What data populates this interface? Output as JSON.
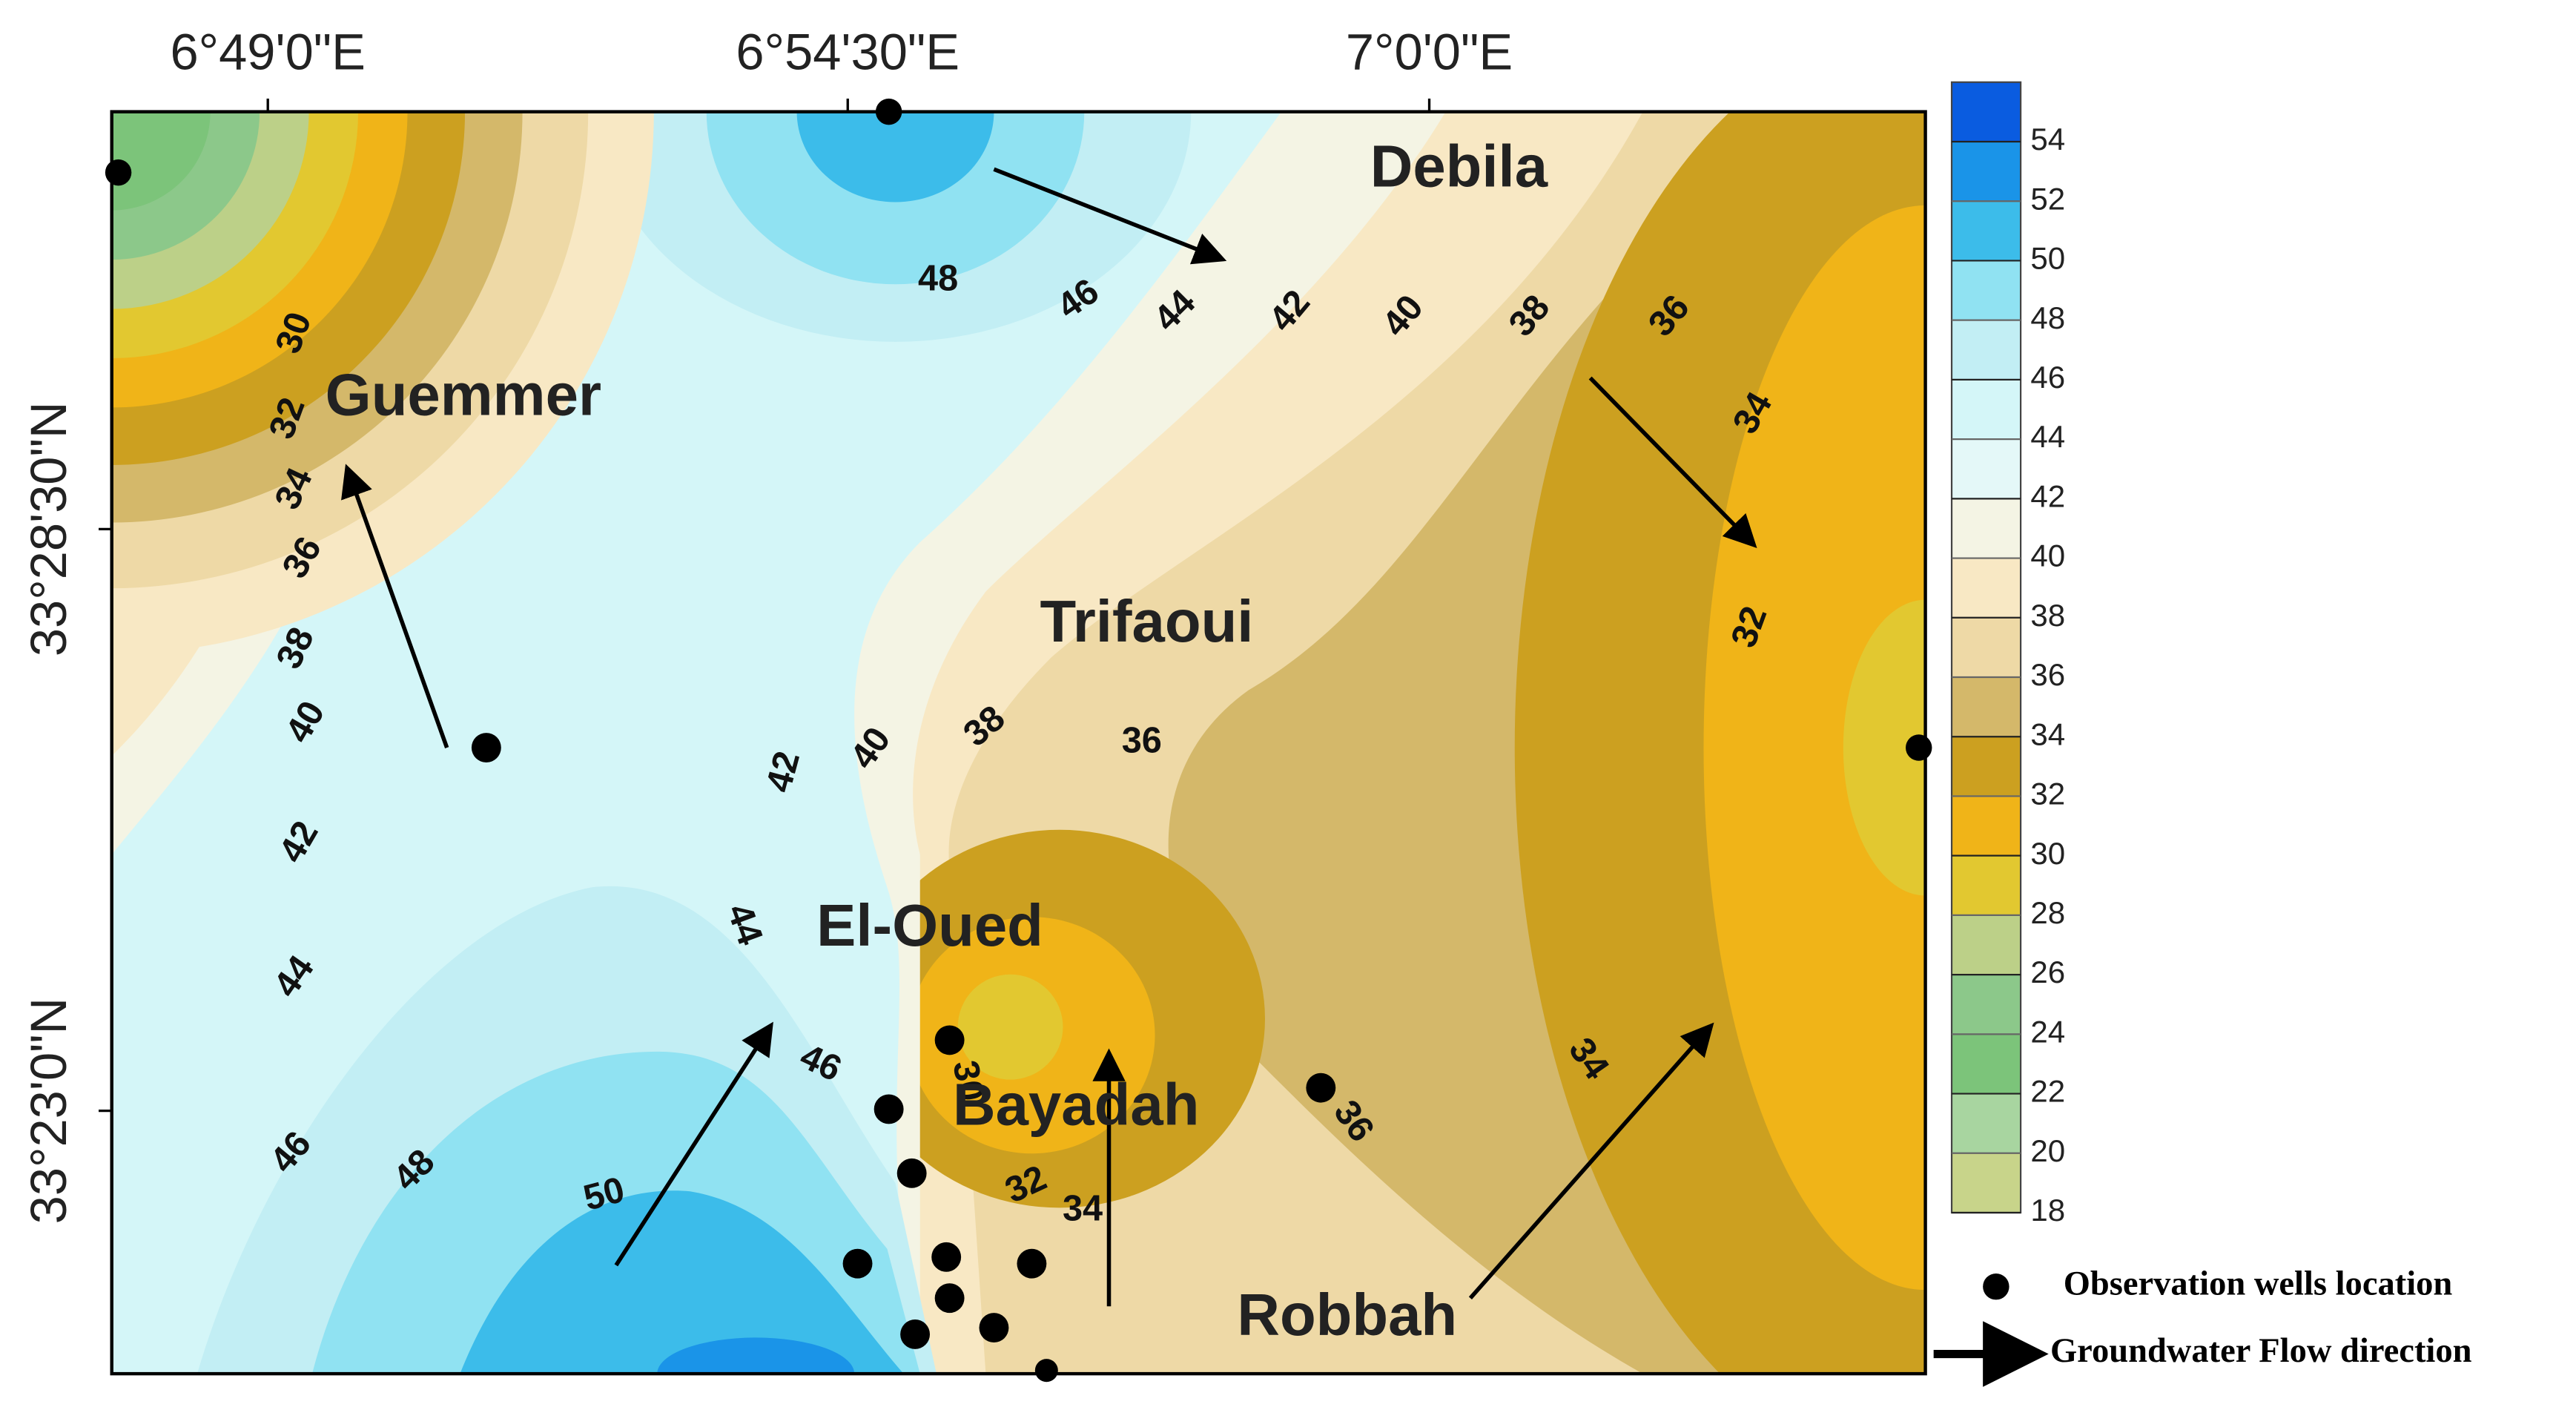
{
  "axes": {
    "longitude_labels": [
      "6°49'0\"E",
      "6°54'30\"E",
      "7°0'0\"E"
    ],
    "latitude_labels": [
      "33°28'30\"N",
      "33°23'0\"N"
    ]
  },
  "places": [
    "Debila",
    "Guemmer",
    "Trifaoui",
    "El-Oued",
    "Bayadah",
    "Robbah"
  ],
  "contour_labels": [
    "48",
    "46",
    "44",
    "42",
    "40",
    "38",
    "36",
    "34",
    "32",
    "30",
    "32",
    "34",
    "36",
    "38",
    "40",
    "42",
    "44",
    "46",
    "48",
    "50",
    "42",
    "40",
    "38",
    "36",
    "44",
    "46",
    "30",
    "32",
    "34",
    "36",
    "34"
  ],
  "colorbar": {
    "range": [
      18,
      56
    ],
    "ticks": [
      18,
      20,
      22,
      24,
      26,
      28,
      30,
      32,
      34,
      36,
      38,
      40,
      42,
      44,
      46,
      48,
      50,
      52,
      54
    ],
    "colors": [
      "#c8d48a",
      "#a8d5a0",
      "#7cc47a",
      "#8cc88a",
      "#bcd088",
      "#e2c830",
      "#f0b418",
      "#cca020",
      "#d4b86a",
      "#eed9a6",
      "#f8e8c4",
      "#f4f4e4",
      "#e4f8f8",
      "#d4f6f8",
      "#c2eef4",
      "#90e2f2",
      "#3cbcea",
      "#1a94e8",
      "#0a5ce0"
    ]
  },
  "legend": {
    "wells": "Observation  wells location",
    "flow": "Groundwater  Flow direction"
  }
}
